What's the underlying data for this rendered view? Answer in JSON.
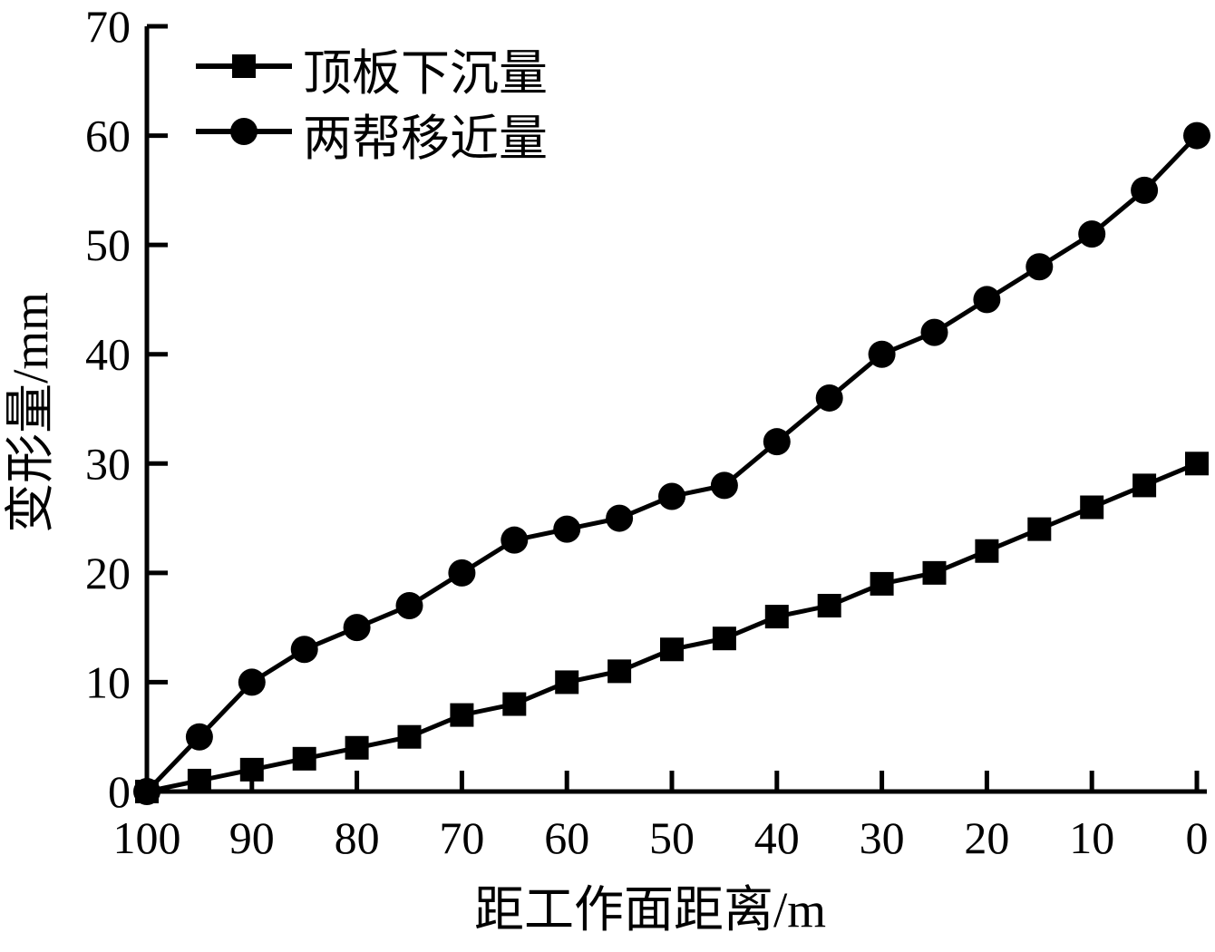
{
  "chart_data": {
    "type": "line",
    "title": "",
    "xlabel": "距工作面距离/m",
    "ylabel": "变形量/mm",
    "x": [
      100,
      95,
      90,
      85,
      80,
      75,
      70,
      65,
      60,
      55,
      50,
      45,
      40,
      35,
      30,
      25,
      20,
      15,
      10,
      5,
      0
    ],
    "series": [
      {
        "key": "roof-subsidence",
        "name": "顶板下沉量",
        "marker": "square",
        "values": [
          0,
          1,
          2,
          3,
          4,
          5,
          7,
          8,
          10,
          11,
          13,
          14,
          16,
          17,
          19,
          20,
          22,
          24,
          26,
          28,
          30
        ]
      },
      {
        "key": "rib-convergence",
        "name": "两帮移近量",
        "marker": "circle",
        "values": [
          0,
          5,
          10,
          13,
          15,
          17,
          20,
          23,
          24,
          25,
          27,
          28,
          32,
          36,
          40,
          42,
          45,
          48,
          51,
          55,
          60
        ]
      }
    ],
    "x_ticks": [
      100,
      90,
      80,
      70,
      60,
      50,
      40,
      30,
      20,
      10,
      0
    ],
    "y_ticks": [
      0,
      10,
      20,
      30,
      40,
      50,
      60,
      70
    ],
    "xlim": [
      100,
      0
    ],
    "ylim": [
      0,
      70
    ],
    "x_axis_reversed": true,
    "grid": false,
    "legend_position": "top-left",
    "line_color": "#000000",
    "background_color": "#ffffff"
  }
}
